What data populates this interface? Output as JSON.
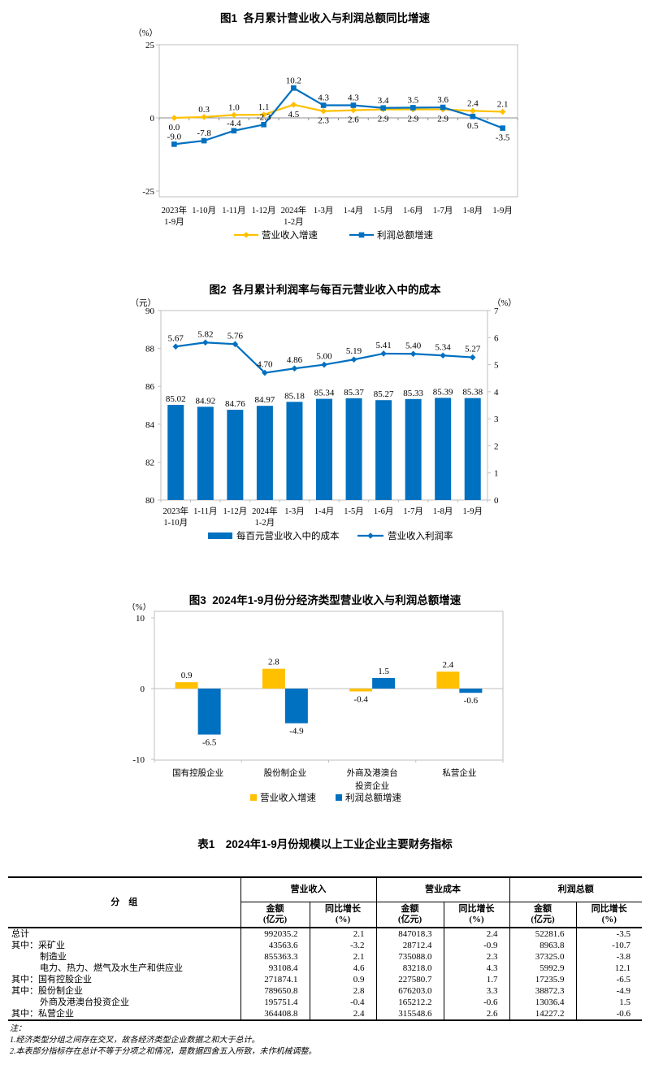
{
  "colors": {
    "orange": "#FFC000",
    "blue": "#0070C0",
    "box_border": "#BFBFBF",
    "zero_line": "#8C8C8C"
  },
  "chart_data": [
    {
      "id": "chart1",
      "type": "line",
      "title": "图1  各月累计营业收入与利润总额同比增速",
      "unit_left": "（%）",
      "categories": [
        [
          "2023年",
          "1-9月"
        ],
        [
          "1-10月"
        ],
        [
          "1-11月"
        ],
        [
          "1-12月"
        ],
        [
          "2024年",
          "1-2月"
        ],
        [
          "1-3月"
        ],
        [
          "1-4月"
        ],
        [
          "1-5月"
        ],
        [
          "1-6月"
        ],
        [
          "1-7月"
        ],
        [
          "1-8月"
        ],
        [
          "1-9月"
        ]
      ],
      "yticks": [
        25,
        0,
        -25
      ],
      "ylim": [
        -25,
        25
      ],
      "decimals": 1,
      "legend_position": "bottom",
      "series": [
        {
          "name": "营业收入增速",
          "slug": "revenue-growth",
          "color": "#FFC000",
          "marker": "diamond",
          "values": [
            0.0,
            0.3,
            1.0,
            1.1,
            4.5,
            2.3,
            2.6,
            2.9,
            2.9,
            2.9,
            2.4,
            2.1
          ]
        },
        {
          "name": "利润总额增速",
          "slug": "profit-growth",
          "color": "#0070C0",
          "marker": "square",
          "values": [
            -9.0,
            -7.8,
            -4.4,
            -2.3,
            10.2,
            4.3,
            4.3,
            3.4,
            3.5,
            3.6,
            0.5,
            -3.5
          ]
        }
      ]
    },
    {
      "id": "chart2",
      "type": "bar+line",
      "title": "图2  各月累计利润率与每百元营业收入中的成本",
      "unit_left": "（元）",
      "unit_right": "（%）",
      "categories": [
        [
          "2023年",
          "1-10月"
        ],
        [
          "1-11月"
        ],
        [
          "1-12月"
        ],
        [
          "2024年",
          "1-2月"
        ],
        [
          "1-3月"
        ],
        [
          "1-4月"
        ],
        [
          "1-5月"
        ],
        [
          "1-6月"
        ],
        [
          "1-7月"
        ],
        [
          "1-8月"
        ],
        [
          "1-9月"
        ]
      ],
      "left_ticks": [
        90,
        88,
        86,
        84,
        82,
        80
      ],
      "left_lim": [
        80,
        90
      ],
      "right_ticks": [
        7,
        6,
        5,
        4,
        3,
        2,
        1,
        0
      ],
      "right_lim": [
        0,
        7
      ],
      "legend_position": "bottom",
      "series": [
        {
          "name": "每百元营业收入中的成本",
          "slug": "cost-per-100-revenue",
          "type": "bar",
          "axis": "left",
          "color": "#0070C0",
          "decimals": 2,
          "values": [
            85.02,
            84.92,
            84.76,
            84.97,
            85.18,
            85.34,
            85.37,
            85.27,
            85.33,
            85.39,
            85.38
          ]
        },
        {
          "name": "营业收入利润率",
          "slug": "operating-margin",
          "type": "line",
          "axis": "right",
          "color": "#0070C0",
          "marker": "diamond",
          "decimals": 2,
          "values": [
            5.67,
            5.82,
            5.76,
            4.7,
            4.86,
            5.0,
            5.19,
            5.41,
            5.4,
            5.34,
            5.27
          ]
        }
      ]
    },
    {
      "id": "chart3",
      "type": "bar",
      "title": "图3  2024年1-9月份分经济类型营业收入与利润总额增速",
      "unit_left": "（%）",
      "categories": [
        [
          "国有控股企业"
        ],
        [
          "股份制企业"
        ],
        [
          "外商及港澳台",
          "投资企业"
        ],
        [
          "私营企业"
        ]
      ],
      "yticks": [
        10,
        0,
        -10
      ],
      "ylim": [
        -10,
        10
      ],
      "decimals": 1,
      "legend_position": "bottom",
      "series": [
        {
          "name": "营业收入增速",
          "slug": "revenue-growth",
          "color": "#FFC000",
          "values": [
            0.9,
            2.8,
            -0.4,
            2.4
          ]
        },
        {
          "name": "利润总额增速",
          "slug": "profit-growth",
          "color": "#0070C0",
          "values": [
            -6.5,
            -4.9,
            1.5,
            -0.6
          ]
        }
      ]
    }
  ],
  "table": {
    "title": "表1　2024年1-9月份规模以上工业企业主要财务指标",
    "col_group_header": "分　组",
    "groups": [
      "营业收入",
      "营业成本",
      "利润总额"
    ],
    "sub_amount": [
      "金额",
      "(亿元)"
    ],
    "sub_growth": [
      "同比增长",
      "(%)"
    ],
    "rows": [
      {
        "label": "总计",
        "indent": 0,
        "values": [
          "992035.2",
          "2.1",
          "847018.3",
          "2.4",
          "52281.6",
          "-3.5"
        ]
      },
      {
        "label": "其中：采矿业",
        "indent": 0,
        "values": [
          "43563.6",
          "-3.2",
          "28712.4",
          "-0.9",
          "8963.8",
          "-10.7"
        ]
      },
      {
        "label": "制造业",
        "indent": 1,
        "values": [
          "855363.3",
          "2.1",
          "735088.0",
          "2.3",
          "37325.0",
          "-3.8"
        ]
      },
      {
        "label": "电力、热力、燃气及水生产和供应业",
        "indent": 1,
        "values": [
          "93108.4",
          "4.6",
          "83218.0",
          "4.3",
          "5992.9",
          "12.1"
        ]
      },
      {
        "label": "其中：国有控股企业",
        "indent": 0,
        "values": [
          "271874.1",
          "0.9",
          "227580.7",
          "1.7",
          "17235.9",
          "-6.5"
        ]
      },
      {
        "label": "其中：股份制企业",
        "indent": 0,
        "values": [
          "789650.8",
          "2.8",
          "676203.0",
          "3.3",
          "38872.3",
          "-4.9"
        ]
      },
      {
        "label": "外商及港澳台投资企业",
        "indent": 1,
        "values": [
          "195751.4",
          "-0.4",
          "165212.2",
          "-0.6",
          "13036.4",
          "1.5"
        ]
      },
      {
        "label": "其中：私营企业",
        "indent": 0,
        "values": [
          "364408.8",
          "2.4",
          "315548.6",
          "2.6",
          "14227.2",
          "-0.6"
        ]
      }
    ],
    "notes_label": "注：",
    "notes": [
      "1.经济类型分组之间存在交叉，故各经济类型企业数据之和大于总计。",
      "2.本表部分指标存在总计不等于分项之和情况，是数据四舍五入所致，未作机械调整。"
    ]
  }
}
